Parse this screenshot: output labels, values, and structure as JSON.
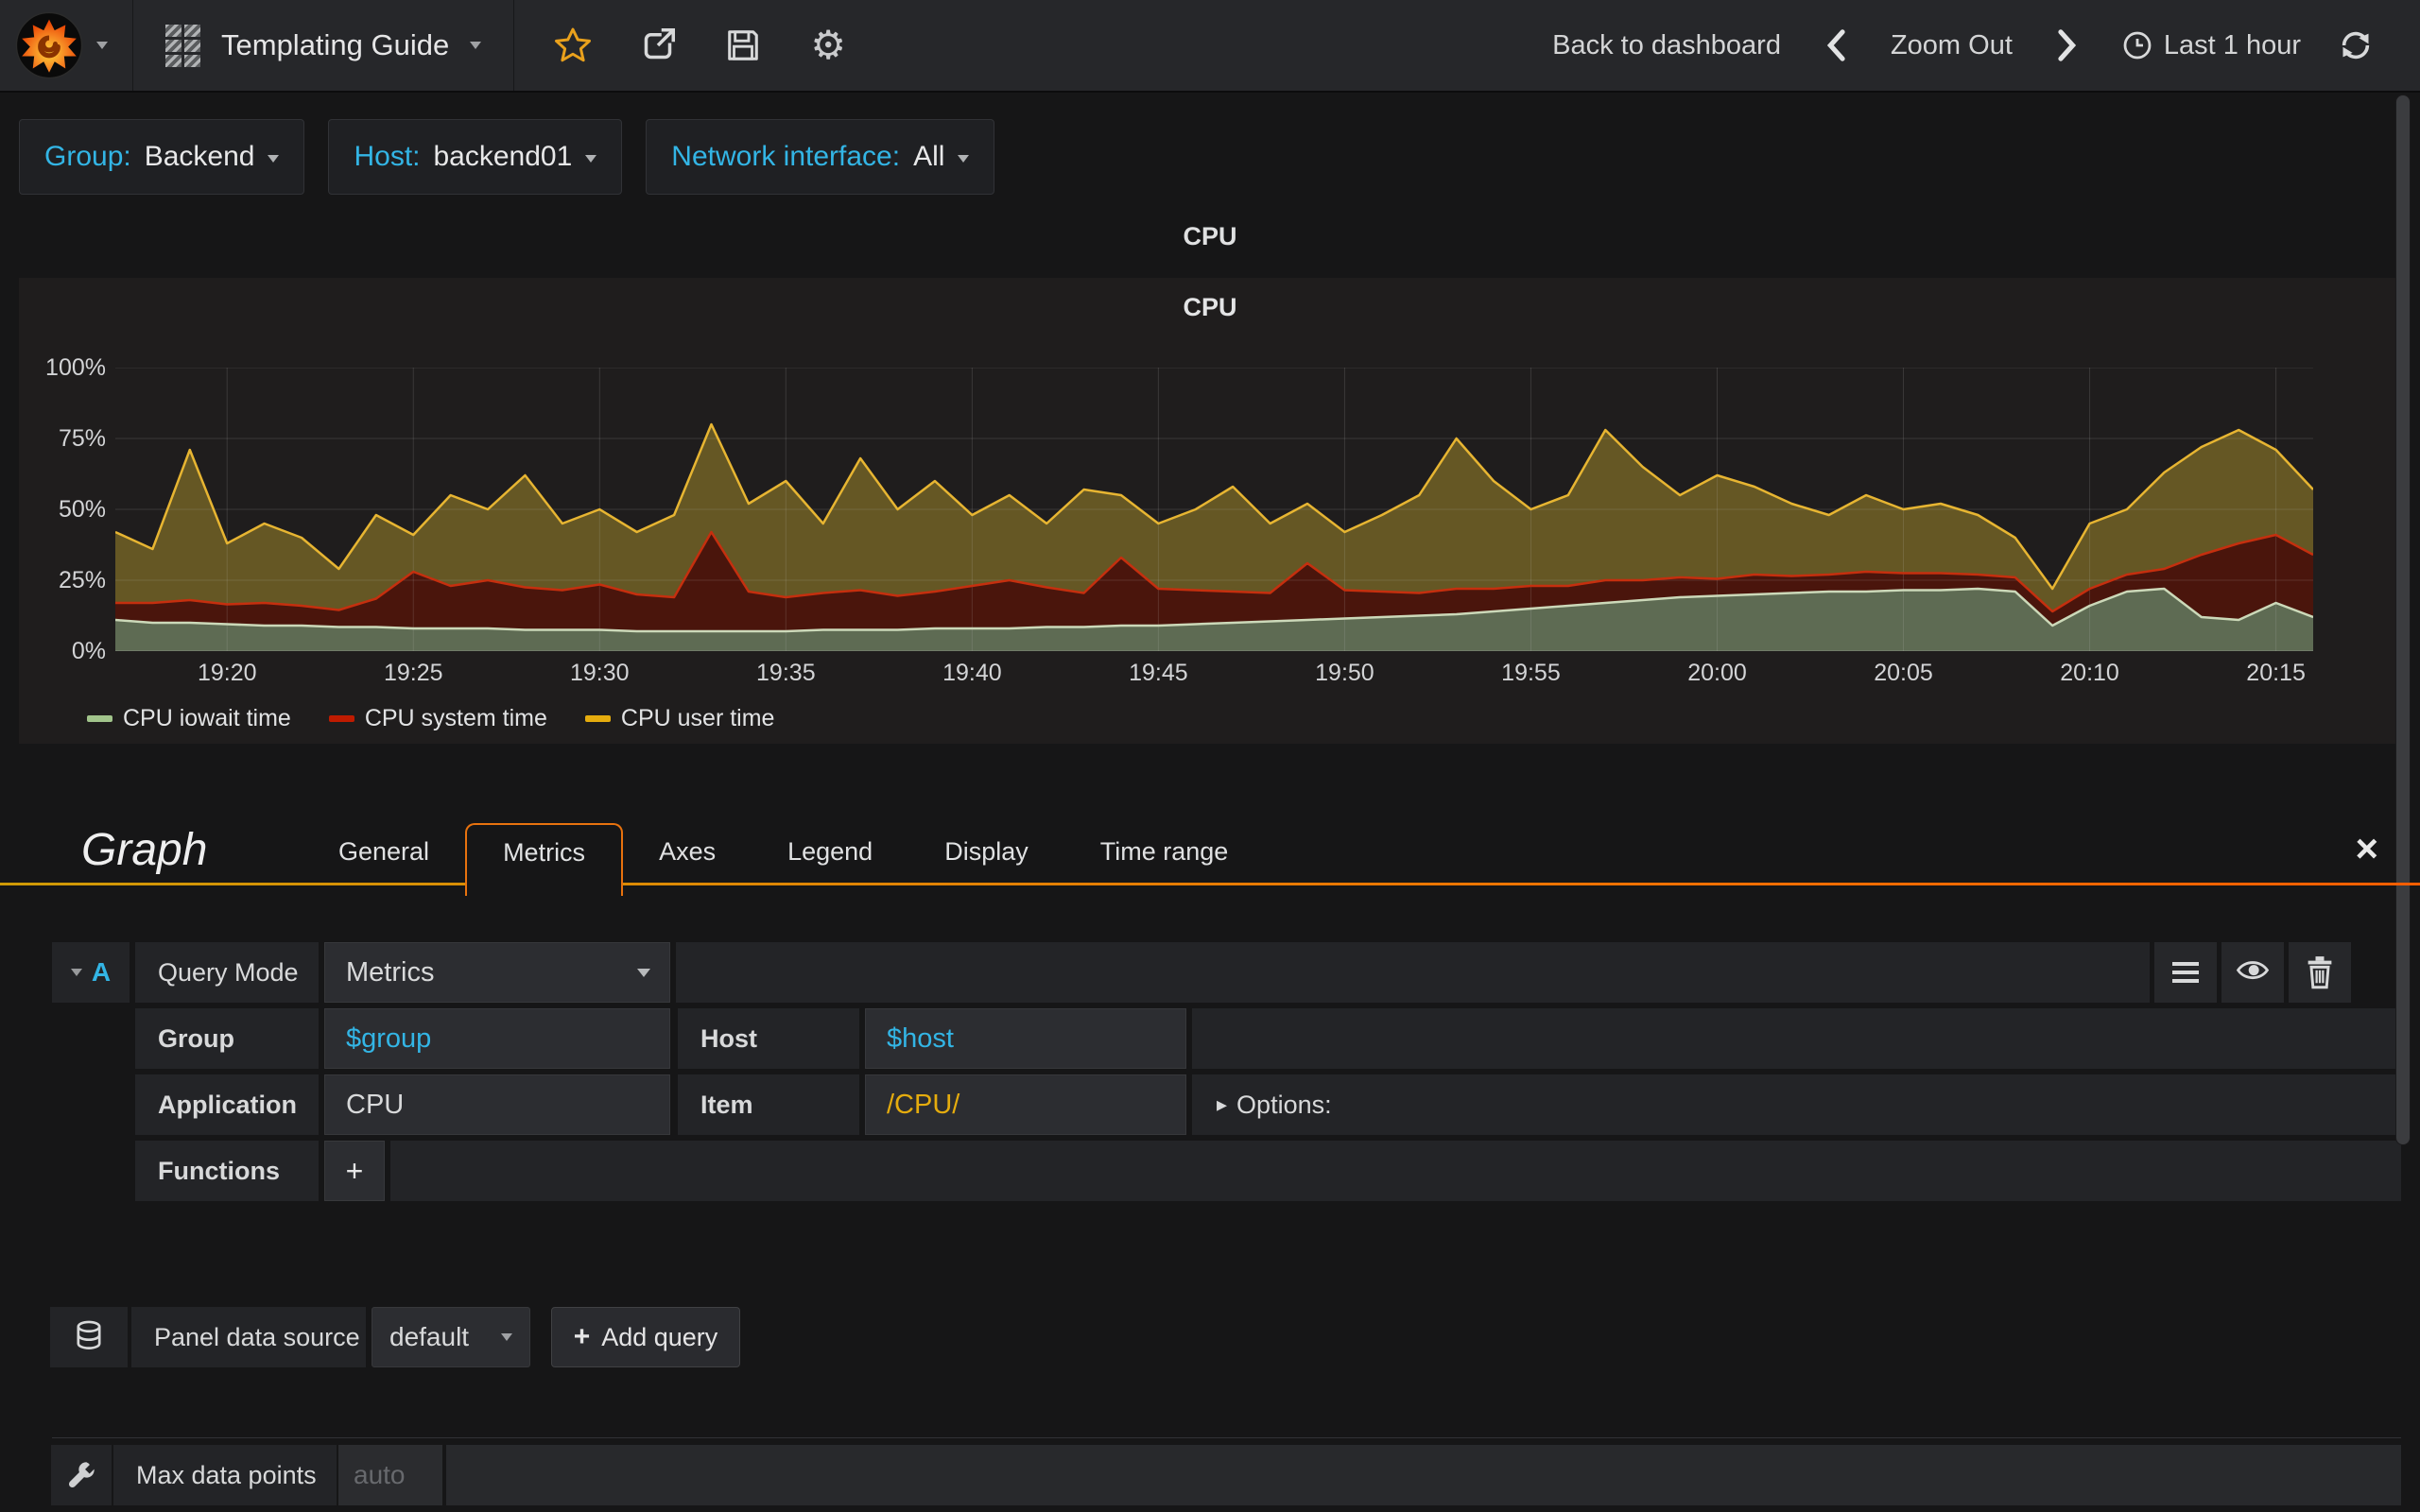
{
  "navbar": {
    "title": "Templating Guide",
    "actions": {
      "back_to_dashboard": "Back to dashboard",
      "zoom_out": "Zoom Out",
      "time_range": "Last 1 hour"
    }
  },
  "template_variables": [
    {
      "label": "Group:",
      "value": "Backend"
    },
    {
      "label": "Host:",
      "value": "backend01"
    },
    {
      "label": "Network interface:",
      "value": "All"
    }
  ],
  "row_title": "CPU",
  "panel_title": "CPU",
  "chart_data": {
    "type": "area",
    "stacked": true,
    "title": "CPU",
    "unit": "percent",
    "ylim": [
      0,
      100
    ],
    "y_tick_values": [
      0,
      25,
      50,
      75,
      100
    ],
    "y_ticks": [
      "0%",
      "25%",
      "50%",
      "75%",
      "100%"
    ],
    "x_start": "19:17",
    "x_end": "20:16",
    "minutes_span": 59,
    "x_tick_minutes": [
      3,
      8,
      13,
      18,
      23,
      28,
      33,
      38,
      43,
      48,
      53,
      58
    ],
    "x_tick_labels": [
      "19:20",
      "19:25",
      "19:30",
      "19:35",
      "19:40",
      "19:45",
      "19:50",
      "19:55",
      "20:00",
      "20:05",
      "20:10",
      "20:15"
    ],
    "grid": true,
    "legend_position": "bottom-left",
    "series": [
      {
        "name": "CPU iowait time",
        "line_color": "#ccd9b9",
        "fill_color": "#5e6b53",
        "legend_color": "#a1c48b",
        "values": [
          11,
          10,
          10,
          9.5,
          9,
          9,
          8.5,
          8.5,
          8,
          8,
          8,
          7.5,
          7.5,
          7.5,
          7,
          7,
          7,
          7,
          7,
          7.5,
          7.5,
          7.5,
          8,
          8,
          8,
          8.5,
          8.5,
          9,
          9,
          9.5,
          10,
          10.5,
          11,
          11.5,
          12,
          12.5,
          13,
          14,
          15,
          16,
          17,
          18,
          19,
          19.5,
          20,
          20.5,
          21,
          21,
          21.5,
          21.5,
          22,
          21,
          9,
          16,
          21,
          22,
          12,
          11,
          17,
          12
        ]
      },
      {
        "name": "CPU system time",
        "line_color": "#c52f0e",
        "fill_color": "#4a150c",
        "legend_color": "#bf1b00",
        "values": [
          6,
          7,
          8,
          7,
          8,
          7,
          6,
          10,
          20,
          15,
          17,
          15,
          14,
          16,
          13,
          12,
          35,
          14,
          12,
          13,
          14,
          12,
          13,
          15,
          17,
          14,
          12,
          24,
          13,
          12,
          11,
          10,
          20,
          10,
          9,
          8,
          9,
          8,
          8,
          7,
          8,
          7,
          7,
          6,
          7,
          6,
          6,
          7,
          6,
          6,
          5,
          5,
          5,
          6,
          6,
          7,
          22,
          27,
          24,
          22
        ]
      },
      {
        "name": "CPU user time",
        "line_color": "#e7b532",
        "fill_color": "#655724",
        "legend_color": "#e5ac0e",
        "values": [
          25,
          19,
          53,
          21.5,
          28,
          24,
          14.5,
          29.5,
          13,
          32,
          25,
          39.5,
          23.5,
          26.5,
          22,
          29,
          38,
          31,
          41,
          24.5,
          46.5,
          30.5,
          39,
          25,
          30,
          22.5,
          36.5,
          22,
          23,
          28.5,
          37,
          24.5,
          21,
          20.5,
          27,
          34.5,
          53,
          38,
          27,
          32,
          53,
          40,
          29,
          36.5,
          31,
          25.5,
          21,
          27,
          22.5,
          24.5,
          21,
          14,
          8,
          23,
          23,
          34,
          38,
          40,
          30,
          23
        ]
      }
    ]
  },
  "editor": {
    "panel_type_title": "Graph",
    "tabs": [
      "General",
      "Metrics",
      "Axes",
      "Legend",
      "Display",
      "Time range"
    ],
    "active_tab": "Metrics",
    "query": {
      "ref_letter": "A",
      "query_mode_label": "Query Mode",
      "query_mode_value": "Metrics",
      "group_label": "Group",
      "group_value": "$group",
      "host_label": "Host",
      "host_value": "$host",
      "application_label": "Application",
      "application_value": "CPU",
      "item_label": "Item",
      "item_value": "/CPU/",
      "options_label": "Options:",
      "functions_label": "Functions",
      "add_function_label": "+"
    },
    "datasource": {
      "label": "Panel data source",
      "value": "default",
      "add_query_label": "Add query"
    },
    "options_row": {
      "max_data_points_label": "Max data points",
      "max_data_points_placeholder": "auto"
    }
  },
  "icons": {
    "gear": "⚙",
    "close": "×",
    "options_caret": "▸",
    "plus": "+"
  },
  "colors": {
    "accent_blue": "#33b5e5",
    "accent_orange": "#e5ac0e",
    "item_value_yellow": "#e5ac0e",
    "tab_border_orange": "#e8720e"
  }
}
